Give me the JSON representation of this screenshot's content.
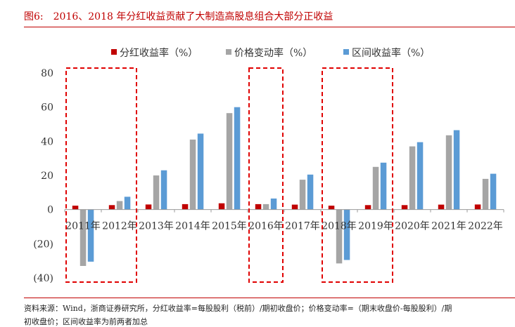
{
  "header": {
    "figure_label": "图6:",
    "title": "2016、2018 年分红收益贡献了大制造高股息组合大部分正收益"
  },
  "footer": {
    "source": "资料来源：Wind，浙商证券研究所，分红收益率=每股股利（税前）/期初收盘价；价格变动率=（期末收盘价-每股股利）/期",
    "source_cont": "初收盘价；区间收益率为前两者加总"
  },
  "colors": {
    "dividend": "#c00000",
    "price": "#a5a5a5",
    "interval": "#5b9bd5",
    "highlight": "#e00000",
    "title": "#c00000"
  },
  "chart_data": {
    "type": "bar",
    "categories": [
      "2011年",
      "2012年",
      "2013年",
      "2014年",
      "2015年",
      "2016年",
      "2017年",
      "2018年",
      "2019年",
      "2020年",
      "2021年",
      "2022年"
    ],
    "series": [
      {
        "name": "分红收益率（%）",
        "values": [
          2.3,
          2.6,
          3.0,
          3.2,
          3.7,
          3.2,
          2.9,
          2.3,
          2.6,
          2.6,
          2.9,
          3.0
        ]
      },
      {
        "name": "价格变动率（%）",
        "values": [
          -33,
          5.0,
          20,
          41,
          56.5,
          3.2,
          17.5,
          -31.5,
          25,
          37,
          43.5,
          18
        ]
      },
      {
        "name": "区间收益率（%）",
        "values": [
          -30.5,
          7.5,
          23,
          44.5,
          60,
          6.5,
          20.5,
          -29.5,
          27.5,
          39.5,
          46.5,
          21
        ]
      }
    ],
    "yticks": [
      "80",
      "60",
      "40",
      "20",
      "0",
      "(20)",
      "(40)"
    ],
    "ytick_values": [
      80,
      60,
      40,
      20,
      0,
      -20,
      -40
    ],
    "ylim": [
      -40,
      80
    ],
    "legend_position": "top",
    "highlighted_categories": [
      [
        0,
        1
      ],
      [
        5,
        5
      ],
      [
        7,
        8
      ]
    ],
    "grid": false
  }
}
